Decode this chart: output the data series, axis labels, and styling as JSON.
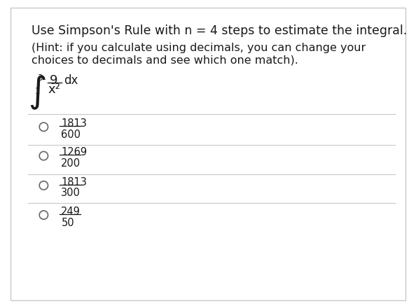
{
  "title_line1": "Use Simpson's Rule with n = 4 steps to estimate the integral.",
  "hint_line1": "(Hint: if you calculate using decimals, you can change your",
  "hint_line2": "choices to decimals and see which one match).",
  "choices": [
    {
      "numerator": "1813",
      "denominator": "600"
    },
    {
      "numerator": "1269",
      "denominator": "200"
    },
    {
      "numerator": "1813",
      "denominator": "300"
    },
    {
      "numerator": "249",
      "denominator": "50"
    }
  ],
  "bg_color": "#ffffff",
  "border_color": "#c8c8c8",
  "text_color": "#1a1a1a",
  "line_color": "#c8c8c8",
  "circle_color": "#666666",
  "font_size_title": 12.5,
  "font_size_hint": 11.5,
  "font_size_integral": 13,
  "font_size_choice": 10.5
}
